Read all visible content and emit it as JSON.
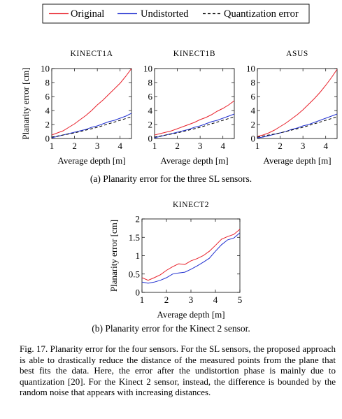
{
  "legend": {
    "entries": [
      {
        "label": "Original",
        "color": "#e8202a",
        "dash": "solid"
      },
      {
        "label": "Undistorted",
        "color": "#1f2fd0",
        "dash": "solid"
      },
      {
        "label": "Quantization error",
        "color": "#000000",
        "dash": "dashed"
      }
    ]
  },
  "chart_data": [
    {
      "type": "line",
      "title": "KINECT1A",
      "xlabel": "Average depth [m]",
      "ylabel": "Planarity error [cm]",
      "xlim": [
        1,
        4.5
      ],
      "ylim": [
        0,
        10
      ],
      "xticks": [
        "1",
        "2",
        "3",
        "4"
      ],
      "yticks": [
        "0",
        "2",
        "4",
        "6",
        "8",
        "10"
      ],
      "series": [
        {
          "name": "Original",
          "x": [
            1.0,
            1.25,
            1.5,
            1.75,
            2.0,
            2.25,
            2.5,
            2.75,
            3.0,
            3.25,
            3.5,
            3.75,
            4.0,
            4.25,
            4.5
          ],
          "y": [
            0.5,
            0.8,
            1.1,
            1.6,
            2.1,
            2.7,
            3.3,
            4.0,
            4.8,
            5.5,
            6.3,
            7.1,
            7.9,
            8.9,
            10.0
          ]
        },
        {
          "name": "Undistorted",
          "x": [
            1.0,
            1.25,
            1.5,
            1.75,
            2.0,
            2.25,
            2.5,
            2.75,
            3.0,
            3.25,
            3.5,
            3.75,
            4.0,
            4.25,
            4.5
          ],
          "y": [
            0.1,
            0.3,
            0.5,
            0.7,
            0.9,
            1.1,
            1.3,
            1.6,
            1.8,
            2.1,
            2.4,
            2.6,
            2.9,
            3.2,
            3.6
          ]
        },
        {
          "name": "Quantization error",
          "x": [
            1.0,
            1.5,
            2.0,
            2.5,
            3.0,
            3.5,
            4.0,
            4.5
          ],
          "y": [
            0.2,
            0.5,
            0.8,
            1.2,
            1.6,
            2.1,
            2.6,
            3.1
          ]
        }
      ]
    },
    {
      "type": "line",
      "title": "KINECT1B",
      "xlabel": "Average depth [m]",
      "ylabel": "",
      "xlim": [
        1,
        4.5
      ],
      "ylim": [
        0,
        10
      ],
      "xticks": [
        "1",
        "2",
        "3",
        "4"
      ],
      "yticks": [
        "0",
        "2",
        "4",
        "6",
        "8",
        "10"
      ],
      "series": [
        {
          "name": "Original",
          "x": [
            1.0,
            1.25,
            1.5,
            1.75,
            2.0,
            2.25,
            2.5,
            2.75,
            3.0,
            3.25,
            3.5,
            3.75,
            4.0,
            4.25,
            4.5
          ],
          "y": [
            0.5,
            0.7,
            0.9,
            1.1,
            1.4,
            1.7,
            2.0,
            2.3,
            2.7,
            3.0,
            3.4,
            3.9,
            4.3,
            4.8,
            5.4
          ]
        },
        {
          "name": "Undistorted",
          "x": [
            1.0,
            1.25,
            1.5,
            1.75,
            2.0,
            2.25,
            2.5,
            2.75,
            3.0,
            3.25,
            3.5,
            3.75,
            4.0,
            4.25,
            4.5
          ],
          "y": [
            0.1,
            0.3,
            0.5,
            0.7,
            0.9,
            1.1,
            1.3,
            1.6,
            1.8,
            2.1,
            2.4,
            2.6,
            2.9,
            3.2,
            3.5
          ]
        },
        {
          "name": "Quantization error",
          "x": [
            1.0,
            1.5,
            2.0,
            2.5,
            3.0,
            3.5,
            4.0,
            4.5
          ],
          "y": [
            0.2,
            0.5,
            0.8,
            1.2,
            1.6,
            2.1,
            2.6,
            3.1
          ]
        }
      ]
    },
    {
      "type": "line",
      "title": "ASUS",
      "xlabel": "Average depth [m]",
      "ylabel": "",
      "xlim": [
        1,
        4.5
      ],
      "ylim": [
        0,
        10
      ],
      "xticks": [
        "1",
        "2",
        "3",
        "4"
      ],
      "yticks": [
        "0",
        "2",
        "4",
        "6",
        "8",
        "10"
      ],
      "series": [
        {
          "name": "Original",
          "x": [
            1.0,
            1.25,
            1.5,
            1.75,
            2.0,
            2.25,
            2.5,
            2.75,
            3.0,
            3.25,
            3.5,
            3.75,
            4.0,
            4.25,
            4.5
          ],
          "y": [
            0.3,
            0.5,
            0.8,
            1.2,
            1.7,
            2.2,
            2.8,
            3.4,
            4.1,
            4.9,
            5.7,
            6.6,
            7.6,
            8.7,
            9.9
          ]
        },
        {
          "name": "Undistorted",
          "x": [
            1.0,
            1.25,
            1.5,
            1.75,
            2.0,
            2.25,
            2.5,
            2.75,
            3.0,
            3.25,
            3.5,
            3.75,
            4.0,
            4.25,
            4.5
          ],
          "y": [
            0.1,
            0.2,
            0.4,
            0.6,
            0.8,
            1.0,
            1.3,
            1.5,
            1.8,
            2.0,
            2.3,
            2.6,
            2.9,
            3.2,
            3.5
          ]
        },
        {
          "name": "Quantization error",
          "x": [
            1.0,
            1.5,
            2.0,
            2.5,
            3.0,
            3.5,
            4.0,
            4.5
          ],
          "y": [
            0.2,
            0.5,
            0.8,
            1.2,
            1.6,
            2.1,
            2.6,
            3.1
          ]
        }
      ]
    },
    {
      "type": "line",
      "title": "KINECT2",
      "xlabel": "Average depth [m]",
      "ylabel": "Planarity error [cm]",
      "xlim": [
        1,
        5
      ],
      "ylim": [
        0,
        2
      ],
      "xticks": [
        "1",
        "2",
        "3",
        "4",
        "5"
      ],
      "yticks": [
        "0",
        "0.5",
        "1",
        "1.5",
        "2"
      ],
      "series": [
        {
          "name": "Original",
          "x": [
            1.0,
            1.25,
            1.5,
            1.75,
            2.0,
            2.25,
            2.5,
            2.75,
            3.0,
            3.25,
            3.5,
            3.75,
            4.0,
            4.25,
            4.5,
            4.75,
            5.0
          ],
          "y": [
            0.4,
            0.33,
            0.4,
            0.48,
            0.6,
            0.7,
            0.78,
            0.76,
            0.86,
            0.92,
            1.0,
            1.12,
            1.28,
            1.45,
            1.52,
            1.58,
            1.72
          ]
        },
        {
          "name": "Undistorted",
          "x": [
            1.0,
            1.25,
            1.5,
            1.75,
            2.0,
            2.25,
            2.5,
            2.75,
            3.0,
            3.25,
            3.5,
            3.75,
            4.0,
            4.25,
            4.5,
            4.75,
            5.0
          ],
          "y": [
            0.28,
            0.25,
            0.28,
            0.33,
            0.4,
            0.5,
            0.53,
            0.55,
            0.63,
            0.72,
            0.82,
            0.93,
            1.12,
            1.3,
            1.43,
            1.48,
            1.62
          ]
        }
      ]
    }
  ],
  "captions": {
    "subfig_a": "(a) Planarity error for the three SL sensors.",
    "subfig_b": "(b) Planarity error for the Kinect 2 sensor.",
    "figure": "Fig. 17.  Planarity error for the four sensors. For the SL sensors, the proposed approach is able to drastically reduce the distance of the measured points from the plane that best fits the data. Here, the error after the undistortion phase is mainly due to quantization [20]. For the Kinect 2 sensor, instead, the difference is bounded by the random noise that appears with increasing distances."
  }
}
